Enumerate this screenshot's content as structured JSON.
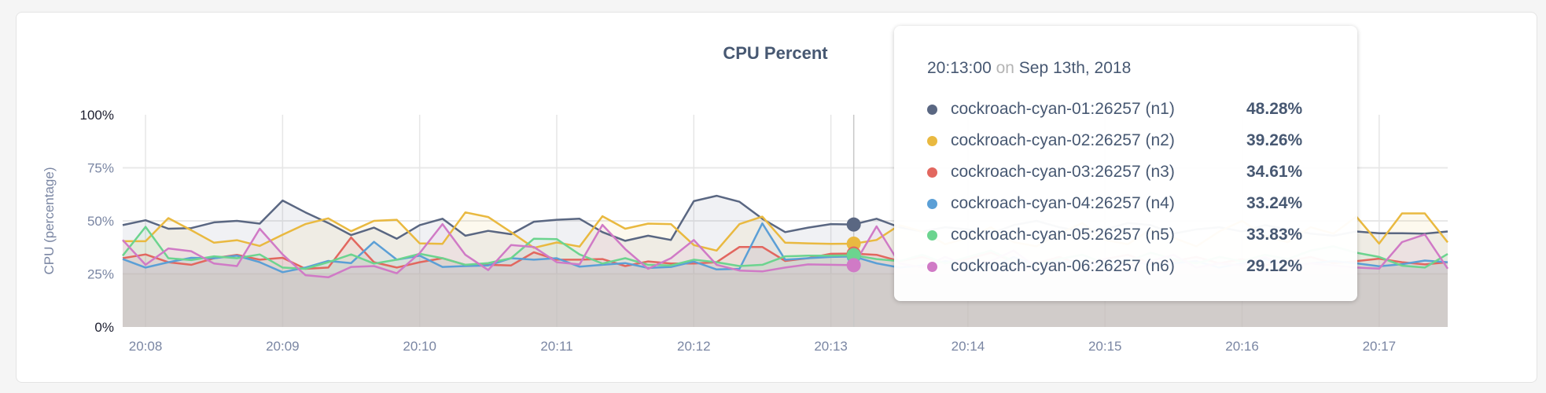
{
  "chart_data": {
    "type": "area",
    "title": "CPU Percent",
    "ylabel": "CPU (percentage)",
    "xlabel": "",
    "ylim": [
      0,
      100
    ],
    "yticks": [
      "0%",
      "25%",
      "50%",
      "75%",
      "100%"
    ],
    "xticks": [
      "20:08",
      "20:09",
      "20:10",
      "20:11",
      "20:12",
      "20:13",
      "20:14",
      "20:15",
      "20:16",
      "20:17"
    ],
    "grid": true,
    "x": [
      "20:07:40",
      "20:07:50",
      "20:08:00",
      "20:08:10",
      "20:08:20",
      "20:08:30",
      "20:08:40",
      "20:08:50",
      "20:09:00",
      "20:09:10",
      "20:09:20",
      "20:09:30",
      "20:09:40",
      "20:09:50",
      "20:10:00",
      "20:10:10",
      "20:10:20",
      "20:10:30",
      "20:10:40",
      "20:10:50",
      "20:11:00",
      "20:11:10",
      "20:11:20",
      "20:11:30",
      "20:11:40",
      "20:11:50",
      "20:12:00",
      "20:12:10",
      "20:12:20",
      "20:12:30",
      "20:12:40",
      "20:12:50",
      "20:13:00",
      "20:13:10",
      "20:13:20",
      "20:13:30",
      "20:13:40",
      "20:13:50",
      "20:14:00",
      "20:14:10",
      "20:14:20",
      "20:14:30",
      "20:14:40",
      "20:14:50",
      "20:15:00",
      "20:15:10",
      "20:15:20",
      "20:15:30",
      "20:15:40",
      "20:15:50",
      "20:16:00",
      "20:16:10",
      "20:16:20",
      "20:16:30",
      "20:16:40",
      "20:16:50",
      "20:17:00",
      "20:17:10",
      "20:17:20"
    ],
    "series": [
      {
        "name": "cockroach-cyan-01:26257 (n1)",
        "color": "#5a6782",
        "values": [
          48,
          50.3,
          46.3,
          46.6,
          49.3,
          50,
          48.7,
          59.6,
          54,
          49,
          43.3,
          46.8,
          41.6,
          48,
          51,
          43,
          45.3,
          43.7,
          49.6,
          50.5,
          51,
          44.7,
          40.6,
          43,
          41,
          59.3,
          61.8,
          59,
          51,
          44.7,
          46.8,
          48.5,
          48.28,
          51,
          47,
          45,
          47,
          46,
          44,
          48,
          50,
          47,
          45,
          46,
          49,
          48,
          44,
          46,
          47,
          45,
          48,
          46,
          44,
          43,
          45,
          44.2,
          44.2,
          44,
          45
        ]
      },
      {
        "name": "cockroach-cyan-02:26257 (n2)",
        "color": "#e9b940",
        "values": [
          40.4,
          40.4,
          51.3,
          45.6,
          39.7,
          40.9,
          38.2,
          43.5,
          48.5,
          51.2,
          45.1,
          50,
          50.5,
          39.4,
          39.2,
          54,
          51.8,
          44.7,
          37.3,
          39.8,
          37.9,
          52.2,
          46.3,
          48.7,
          48.5,
          38.6,
          36,
          48.5,
          52,
          39.7,
          39.4,
          39.2,
          39.26,
          41,
          48,
          45,
          39,
          42,
          47,
          40,
          38,
          44,
          49,
          41,
          39,
          46,
          42,
          38,
          45,
          50,
          43,
          40,
          47,
          44,
          52,
          39.3,
          53.5,
          53.5,
          39.9
        ]
      },
      {
        "name": "cockroach-cyan-03:26257 (n3)",
        "color": "#e2675f",
        "values": [
          32.4,
          34.2,
          30.5,
          29.3,
          32.4,
          34,
          31.7,
          32.6,
          27.4,
          28,
          42.2,
          30.5,
          28,
          30.5,
          32.4,
          29.3,
          29.3,
          29,
          35.2,
          31.7,
          31.7,
          32,
          28.7,
          30.9,
          29.9,
          29.9,
          30.5,
          37.7,
          37.7,
          31.1,
          32.4,
          34.5,
          34.61,
          34,
          31,
          33,
          30,
          32,
          35,
          31,
          30,
          33,
          29,
          32,
          34,
          30,
          31,
          33,
          30,
          32,
          29,
          31,
          33,
          30,
          31,
          32.2,
          30.5,
          29.5,
          30.5
        ]
      },
      {
        "name": "cockroach-cyan-04:26257 (n4)",
        "color": "#5b9fd6",
        "values": [
          32,
          28,
          30.5,
          32.6,
          32.4,
          33.6,
          30.5,
          25.8,
          28,
          31.1,
          30.1,
          40.1,
          31.7,
          33.6,
          28.3,
          28.7,
          29,
          32.4,
          31.7,
          32.4,
          28.4,
          29.3,
          30.1,
          27.8,
          28.3,
          30.8,
          27.1,
          27.4,
          48.8,
          31.7,
          32.4,
          33,
          33.24,
          30,
          28,
          29,
          31,
          30,
          28,
          33,
          29,
          31,
          30,
          28,
          32,
          29,
          30,
          31,
          28,
          30,
          32,
          29,
          30,
          31,
          30,
          28.6,
          29.6,
          31.3,
          30.5
        ]
      },
      {
        "name": "cockroach-cyan-05:26257 (n5)",
        "color": "#6cd48f",
        "values": [
          33.6,
          47.2,
          32.4,
          31.5,
          33.3,
          32.4,
          34.2,
          28,
          27.4,
          30.5,
          34.2,
          29.9,
          31.7,
          34.5,
          32.4,
          29.3,
          30.1,
          32.4,
          41.6,
          41.4,
          34.2,
          29.9,
          32.4,
          29.3,
          29,
          31.7,
          30.5,
          28.7,
          29.3,
          33.3,
          33.6,
          33.6,
          33.83,
          32,
          31,
          34,
          30,
          33,
          36,
          31,
          29,
          32,
          34,
          30,
          31,
          35,
          32,
          30,
          33,
          31,
          34,
          32,
          36,
          38,
          35,
          33,
          28.9,
          28,
          34.4
        ]
      },
      {
        "name": "cockroach-cyan-06:26257 (n6)",
        "color": "#d07ac6",
        "values": [
          41,
          29.3,
          37,
          35.7,
          29.9,
          28.7,
          46.3,
          34.2,
          24.4,
          23.4,
          28.3,
          28.7,
          25.3,
          34.8,
          48.5,
          34,
          26.8,
          38.6,
          37.7,
          30.5,
          29.5,
          48.1,
          36.7,
          27.4,
          32.4,
          41,
          29.3,
          26.6,
          26.2,
          28,
          29.5,
          29.3,
          29.12,
          47.4,
          30,
          28,
          33,
          29,
          31,
          36,
          28,
          30,
          27,
          32,
          29,
          31,
          34,
          28,
          30,
          29,
          33,
          28,
          30,
          29,
          28,
          27.5,
          40,
          43.6,
          27.5
        ]
      }
    ],
    "hover_index": 32
  },
  "tooltip": {
    "time": "20:13:00",
    "on": "on",
    "date": "Sep 13th, 2018",
    "rows": [
      {
        "name": "cockroach-cyan-01:26257 (n1)",
        "value": "48.28%"
      },
      {
        "name": "cockroach-cyan-02:26257 (n2)",
        "value": "39.26%"
      },
      {
        "name": "cockroach-cyan-03:26257 (n3)",
        "value": "34.61%"
      },
      {
        "name": "cockroach-cyan-04:26257 (n4)",
        "value": "33.24%"
      },
      {
        "name": "cockroach-cyan-05:26257 (n5)",
        "value": "33.83%"
      },
      {
        "name": "cockroach-cyan-06:26257 (n6)",
        "value": "29.12%"
      }
    ]
  }
}
